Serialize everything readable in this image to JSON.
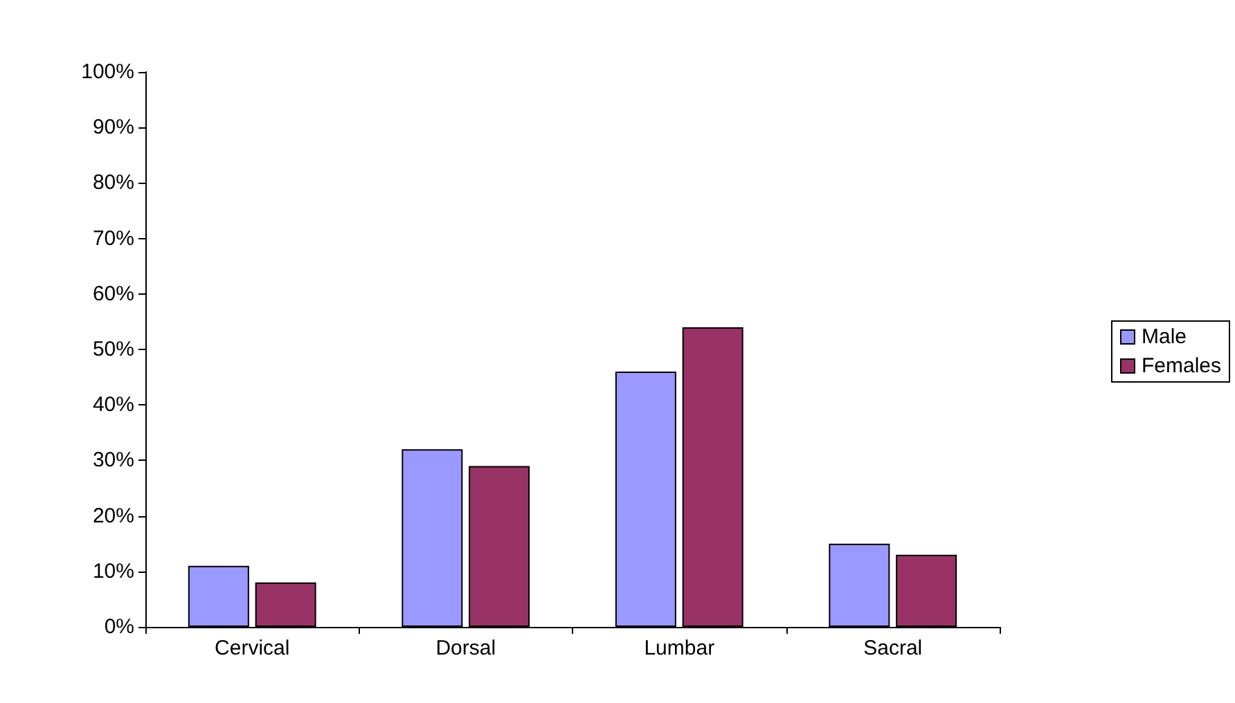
{
  "chart_data": {
    "type": "bar",
    "categories": [
      "Cervical",
      "Dorsal",
      "Lumbar",
      "Sacral"
    ],
    "series": [
      {
        "name": "Male",
        "color": "#9999ff",
        "values": [
          11,
          32,
          46,
          15
        ]
      },
      {
        "name": "Females",
        "color": "#993366",
        "values": [
          8,
          29,
          54,
          13
        ]
      }
    ],
    "ylim": [
      0,
      100
    ],
    "yticks": [
      {
        "value": 0,
        "label": "0%"
      },
      {
        "value": 10,
        "label": "10%"
      },
      {
        "value": 20,
        "label": "20%"
      },
      {
        "value": 30,
        "label": "30%"
      },
      {
        "value": 40,
        "label": "40%"
      },
      {
        "value": 50,
        "label": "50%"
      },
      {
        "value": 60,
        "label": "60%"
      },
      {
        "value": 70,
        "label": "70%"
      },
      {
        "value": 80,
        "label": "80%"
      },
      {
        "value": 90,
        "label": "90%"
      },
      {
        "value": 100,
        "label": "100%"
      }
    ],
    "grid": false,
    "legend": "right"
  }
}
